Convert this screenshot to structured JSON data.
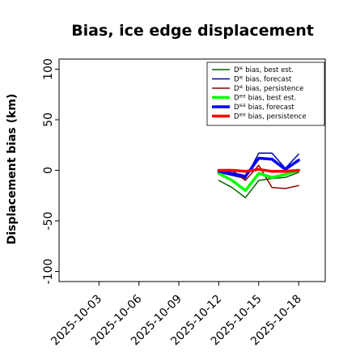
{
  "chart_data": {
    "type": "line",
    "title": "Bias, ice edge displacement",
    "xlabel": "",
    "ylabel": "Displacement bias (km)",
    "ylim": [
      -110,
      110
    ],
    "yticks": [
      -100,
      -50,
      0,
      50,
      100
    ],
    "xlim": [
      "2025-09-30",
      "2025-10-20"
    ],
    "xticks": [
      {
        "date": "2025-10-03",
        "label": "2025-10-03",
        "color": "#000000"
      },
      {
        "date": "2025-10-06",
        "label": "2025-10-06",
        "color": "#000000"
      },
      {
        "date": "2025-10-09",
        "label": "2025-10-09",
        "color": "#228B22"
      },
      {
        "date": "2025-10-12",
        "label": "2025-10-12",
        "color": "#000000"
      },
      {
        "date": "2025-10-15",
        "label": "2025-10-15",
        "color": "#000000"
      },
      {
        "date": "2025-10-18",
        "label": "2025-10-18",
        "color": "#000000"
      }
    ],
    "x": [
      "2025-10-12",
      "2025-10-13",
      "2025-10-14",
      "2025-10-15",
      "2025-10-16",
      "2025-10-17",
      "2025-10-18"
    ],
    "legend_position": "top-right",
    "grid": false,
    "series": [
      {
        "name": "Dᴵᴱ bias, best est.",
        "color": "#006400",
        "width": 1.5,
        "values": [
          -10,
          -17,
          -27,
          -10,
          -8,
          -7,
          -2
        ]
      },
      {
        "name": "Dᴵᴱ bias, forecast",
        "color": "#0000b0",
        "width": 1.5,
        "values": [
          -2,
          -5,
          -8,
          17,
          17,
          2,
          16
        ]
      },
      {
        "name": "Dᴵᴱ bias, persistence",
        "color": "#8b0000",
        "width": 1.5,
        "values": [
          0,
          0,
          -10,
          5,
          -17,
          -18,
          -15
        ]
      },
      {
        "name": "Dᴵᴱᴱ bias, best est.",
        "color": "#00ff00",
        "width": 3.5,
        "values": [
          -3,
          -10,
          -20,
          -3,
          -7,
          -4,
          0
        ]
      },
      {
        "name": "Dᴵᴱᴱ bias, forecast",
        "color": "#0000ff",
        "width": 3.5,
        "values": [
          -1,
          -3,
          -6,
          12,
          11,
          1,
          10
        ]
      },
      {
        "name": "Dᴵᴱᴱ bias, persistence",
        "color": "#ff0000",
        "width": 3.5,
        "values": [
          0,
          0,
          -1,
          1,
          -1,
          -1,
          0
        ]
      }
    ]
  }
}
